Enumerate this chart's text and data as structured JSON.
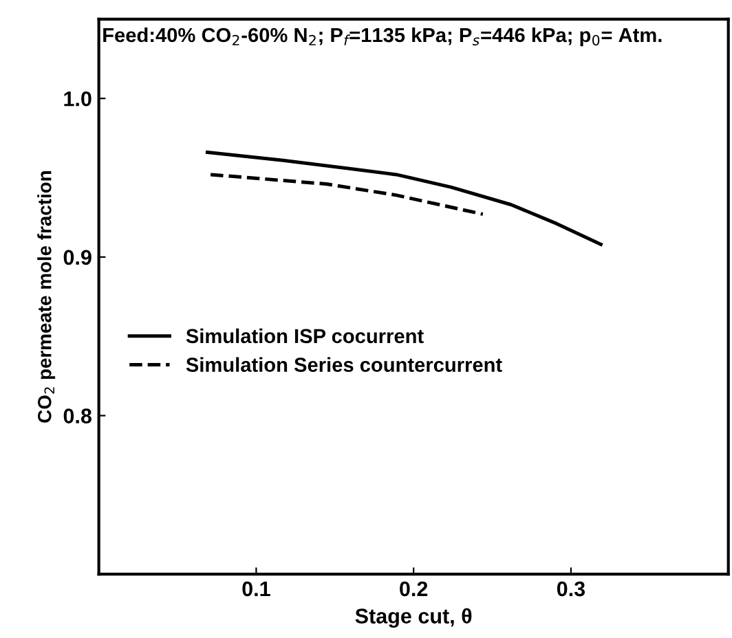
{
  "chart_data": {
    "type": "line",
    "title": "Feed:40% CO$_{2}$-60% N$_{2}$; P$_{f}$=1135 kPa; P$_{s}$=446 kPa; p$_{0}$= Atm.",
    "xlabel": "Stage cut, θ",
    "ylabel": "CO$_{2}$ permeate mole fraction",
    "xlim": [
      0,
      0.4
    ],
    "ylim": [
      0.7,
      1.05
    ],
    "xticks": [
      0.1,
      0.2,
      0.3
    ],
    "yticks": [
      0.8,
      0.9,
      {
        "value": 1,
        "label": "1.0"
      }
    ],
    "grid": false,
    "legend": "left",
    "marker": "none",
    "series": [
      {
        "name": "Simulation ISP cocurrent",
        "color": "#000000",
        "line_style": "solid",
        "x": [
          0.069,
          0.117,
          0.189,
          0.224,
          0.262,
          0.291,
          0.319
        ],
        "values": [
          0.966,
          0.961,
          0.952,
          0.944,
          0.933,
          0.921,
          0.908
        ]
      },
      {
        "name": "Simulation Series countercurrent",
        "color": "#000000",
        "line_style": "dashed",
        "x": [
          0.071,
          0.145,
          0.189,
          0.244
        ],
        "values": [
          0.952,
          0.946,
          0.939,
          0.927
        ]
      }
    ]
  }
}
